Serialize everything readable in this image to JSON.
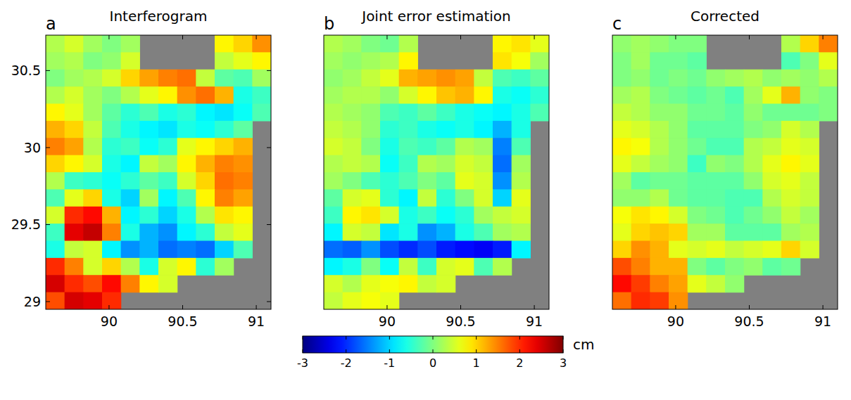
{
  "chart_data": {
    "type": "heatmap",
    "color_range": [
      -3,
      3
    ],
    "color_ticks": [
      -3,
      -2,
      -1,
      0,
      1,
      2,
      3
    ],
    "color_label": "cm",
    "panels": [
      {
        "title": "Interferogram",
        "label": "a",
        "xlim": [
          89.57,
          91.1
        ],
        "ylim": [
          28.95,
          30.73
        ],
        "xticks": [
          90,
          90.5,
          91
        ],
        "yticks": [
          29,
          29.5,
          30,
          30.5
        ],
        "cells": [
          [
            0.3,
            0.5,
            0.2,
            0.0,
            0.2,
            null,
            null,
            null,
            null,
            0.8,
            1.0,
            1.4
          ],
          [
            0.2,
            0.3,
            0.0,
            0.1,
            0.5,
            null,
            null,
            null,
            null,
            0.4,
            0.6,
            0.8
          ],
          [
            0.0,
            0.2,
            0.3,
            0.5,
            1.0,
            1.3,
            1.5,
            1.6,
            0.4,
            -0.2,
            -0.3,
            0.2
          ],
          [
            0.3,
            0.5,
            0.2,
            0.0,
            0.3,
            0.6,
            0.8,
            1.4,
            1.6,
            1.2,
            -0.6,
            -0.4
          ],
          [
            0.8,
            0.6,
            0.2,
            -0.2,
            -0.5,
            -0.3,
            -0.6,
            -0.5,
            -0.8,
            -0.9,
            -0.7,
            -0.3
          ],
          [
            1.2,
            1.0,
            0.4,
            -0.3,
            -0.6,
            -0.8,
            -0.9,
            -0.6,
            -0.7,
            -0.5,
            -0.2,
            null
          ],
          [
            1.5,
            1.3,
            0.3,
            -0.5,
            -0.4,
            -0.7,
            -0.5,
            0.6,
            0.8,
            1.0,
            1.2,
            null
          ],
          [
            1.0,
            0.8,
            0.5,
            -0.6,
            -0.8,
            0.4,
            0.2,
            0.8,
            1.2,
            1.5,
            1.4,
            null
          ],
          [
            0.3,
            -0.4,
            -0.5,
            -0.7,
            -0.5,
            -0.2,
            -0.4,
            0.5,
            1.0,
            1.6,
            1.5,
            null
          ],
          [
            -0.3,
            0.6,
            1.0,
            -0.6,
            -1.0,
            0.2,
            -0.8,
            -0.3,
            0.8,
            1.5,
            1.3,
            null
          ],
          [
            0.5,
            2.0,
            2.2,
            1.2,
            -0.8,
            -0.5,
            -1.0,
            -0.6,
            0.3,
            0.9,
            0.8,
            null
          ],
          [
            -0.4,
            2.4,
            2.6,
            1.5,
            -0.6,
            -1.2,
            -1.4,
            -0.8,
            -0.5,
            0.4,
            0.6,
            null
          ],
          [
            -0.6,
            0.4,
            0.5,
            -0.8,
            -1.4,
            -1.2,
            -1.6,
            -1.5,
            -1.6,
            -1.0,
            -0.3,
            null
          ],
          [
            2.0,
            1.5,
            0.5,
            1.0,
            0.3,
            -0.6,
            0.5,
            0.8,
            -0.5,
            0.2,
            null,
            null
          ],
          [
            2.5,
            2.0,
            1.8,
            2.2,
            1.5,
            0.8,
            0.5,
            null,
            null,
            null,
            null,
            null
          ],
          [
            1.8,
            2.5,
            2.4,
            2.0,
            null,
            null,
            null,
            null,
            null,
            null,
            null,
            null
          ]
        ]
      },
      {
        "title": "Joint error estimation",
        "label": "b",
        "xlim": [
          89.57,
          91.1
        ],
        "ylim": [
          28.95,
          30.73
        ],
        "xticks": [
          90,
          90.5,
          91
        ],
        "tick_labels": "x",
        "cells": [
          [
            0.3,
            0.2,
            0.0,
            -0.1,
            0.3,
            null,
            null,
            null,
            null,
            0.8,
            0.9,
            0.6
          ],
          [
            0.2,
            0.1,
            0.2,
            0.3,
            0.8,
            null,
            null,
            null,
            null,
            0.9,
            0.7,
            0.2
          ],
          [
            0.1,
            0.2,
            0.4,
            0.6,
            1.2,
            1.3,
            1.4,
            1.3,
            0.4,
            -0.3,
            -0.4,
            -0.2
          ],
          [
            0.2,
            0.3,
            0.3,
            0.1,
            0.5,
            0.8,
            1.1,
            1.2,
            0.8,
            -0.6,
            -0.7,
            -0.5
          ],
          [
            0.3,
            0.2,
            0.1,
            -0.3,
            -0.4,
            -0.2,
            -0.4,
            -0.6,
            -0.7,
            -0.8,
            -0.6,
            -0.3
          ],
          [
            0.4,
            0.3,
            0.1,
            -0.5,
            -0.4,
            -0.6,
            -0.7,
            -0.6,
            -0.8,
            -1.2,
            -0.6,
            null
          ],
          [
            0.5,
            0.4,
            0.0,
            -0.6,
            -0.3,
            -0.4,
            -0.2,
            0.3,
            0.2,
            -1.5,
            -0.3,
            null
          ],
          [
            0.3,
            0.4,
            0.3,
            -0.7,
            -0.4,
            0.3,
            0.2,
            0.5,
            0.4,
            -1.6,
            0.2,
            null
          ],
          [
            0.2,
            0.0,
            -0.3,
            -0.5,
            -0.3,
            0.0,
            -0.2,
            0.6,
            0.5,
            -1.4,
            0.3,
            null
          ],
          [
            -0.2,
            0.5,
            0.6,
            -0.5,
            -0.8,
            0.4,
            -0.5,
            0.0,
            0.5,
            -1.0,
            0.6,
            null
          ],
          [
            -0.4,
            0.8,
            0.9,
            0.5,
            -0.6,
            -0.4,
            -0.7,
            -0.5,
            0.2,
            0.4,
            0.5,
            null
          ],
          [
            -0.8,
            0.5,
            0.4,
            -0.9,
            -0.6,
            -1.4,
            -1.2,
            -0.6,
            -0.3,
            0.2,
            0.3,
            null
          ],
          [
            -1.6,
            -1.7,
            -1.4,
            -1.8,
            -2.0,
            -1.8,
            -2.1,
            -2.2,
            -2.3,
            -2.1,
            -0.8,
            null
          ],
          [
            -0.8,
            -0.6,
            0.0,
            -0.7,
            0.4,
            -0.4,
            0.5,
            0.6,
            -0.3,
            0.3,
            null,
            null
          ],
          [
            0.5,
            0.3,
            0.6,
            0.7,
            0.8,
            0.4,
            0.5,
            null,
            null,
            null,
            null,
            null
          ],
          [
            0.4,
            0.6,
            0.7,
            0.6,
            null,
            null,
            null,
            null,
            null,
            null,
            null,
            null
          ]
        ]
      },
      {
        "title": "Corrected",
        "label": "c",
        "xlim": [
          89.57,
          91.1
        ],
        "ylim": [
          28.95,
          30.73
        ],
        "xticks": [
          90,
          90.5,
          91
        ],
        "tick_labels": "x",
        "cells": [
          [
            0.1,
            0.2,
            0.1,
            0.0,
            0.0,
            null,
            null,
            null,
            null,
            0.3,
            1.0,
            1.5
          ],
          [
            0.0,
            0.2,
            -0.1,
            -0.1,
            -0.2,
            null,
            null,
            null,
            null,
            -0.3,
            0.0,
            0.6
          ],
          [
            0.0,
            0.1,
            -0.1,
            0.0,
            -0.1,
            0.1,
            0.2,
            0.3,
            0.1,
            0.2,
            0.1,
            0.3
          ],
          [
            0.2,
            0.3,
            0.0,
            -0.1,
            -0.2,
            -0.1,
            -0.3,
            0.2,
            0.6,
            1.2,
            0.1,
            0.0
          ],
          [
            0.4,
            0.3,
            0.1,
            0.1,
            -0.1,
            -0.1,
            -0.2,
            0.1,
            -0.1,
            -0.1,
            -0.1,
            0.0
          ],
          [
            0.6,
            0.5,
            0.3,
            0.1,
            -0.2,
            -0.2,
            -0.2,
            0.0,
            0.1,
            0.5,
            0.3,
            null
          ],
          [
            0.8,
            0.7,
            0.3,
            0.1,
            -0.1,
            -0.3,
            -0.3,
            0.3,
            0.4,
            0.6,
            0.5,
            null
          ],
          [
            0.6,
            0.4,
            0.2,
            0.1,
            -0.4,
            0.1,
            0.0,
            0.3,
            0.6,
            0.8,
            0.6,
            null
          ],
          [
            0.2,
            -0.2,
            -0.1,
            -0.1,
            -0.2,
            -0.2,
            -0.2,
            0.1,
            0.5,
            0.6,
            0.4,
            null
          ],
          [
            0.1,
            0.1,
            0.3,
            -0.1,
            -0.2,
            -0.2,
            -0.3,
            -0.3,
            0.3,
            0.5,
            0.4,
            null
          ],
          [
            0.7,
            0.9,
            0.8,
            0.5,
            0.0,
            -0.1,
            -0.3,
            -0.1,
            0.1,
            0.4,
            0.2,
            null
          ],
          [
            0.6,
            1.0,
            1.1,
            1.0,
            0.2,
            0.2,
            -0.2,
            -0.2,
            -0.2,
            0.2,
            0.3,
            null
          ],
          [
            1.0,
            1.4,
            1.2,
            0.6,
            0.5,
            0.6,
            0.4,
            0.5,
            0.6,
            1.0,
            0.5,
            null
          ],
          [
            1.8,
            1.5,
            1.2,
            1.2,
            0.0,
            -0.2,
            0.0,
            0.1,
            -0.2,
            -0.1,
            null,
            null
          ],
          [
            2.2,
            1.9,
            1.5,
            1.3,
            0.6,
            0.4,
            0.1,
            null,
            null,
            null,
            null,
            null
          ],
          [
            1.6,
            2.0,
            1.9,
            1.4,
            null,
            null,
            null,
            null,
            null,
            null,
            null,
            null
          ]
        ]
      }
    ]
  }
}
